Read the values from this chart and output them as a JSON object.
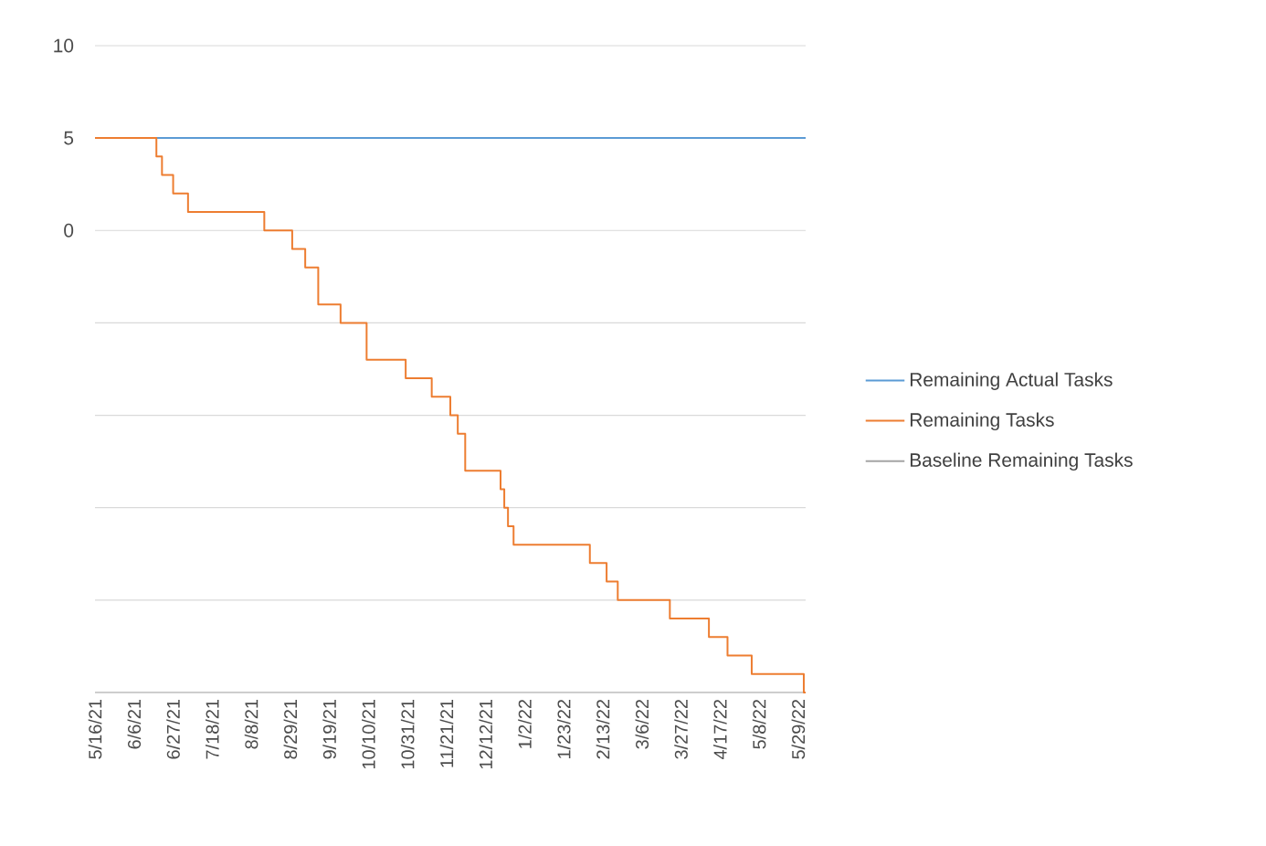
{
  "chart_data": {
    "type": "step",
    "xlim": [
      "2021-05-16",
      "2022-06-02"
    ],
    "ylim": [
      -25,
      10
    ],
    "xticks": [
      {
        "value": "2021-05-16",
        "label": "5/16/21"
      },
      {
        "value": "2021-06-06",
        "label": "6/6/21"
      },
      {
        "value": "2021-06-27",
        "label": "6/27/21"
      },
      {
        "value": "2021-07-18",
        "label": "7/18/21"
      },
      {
        "value": "2021-08-08",
        "label": "8/8/21"
      },
      {
        "value": "2021-08-29",
        "label": "8/29/21"
      },
      {
        "value": "2021-09-19",
        "label": "9/19/21"
      },
      {
        "value": "2021-10-10",
        "label": "10/10/21"
      },
      {
        "value": "2021-10-31",
        "label": "10/31/21"
      },
      {
        "value": "2021-11-21",
        "label": "11/21/21"
      },
      {
        "value": "2021-12-12",
        "label": "12/12/21"
      },
      {
        "value": "2022-01-02",
        "label": "1/2/22"
      },
      {
        "value": "2022-01-23",
        "label": "1/23/22"
      },
      {
        "value": "2022-02-13",
        "label": "2/13/22"
      },
      {
        "value": "2022-03-06",
        "label": "3/6/22"
      },
      {
        "value": "2022-03-27",
        "label": "3/27/22"
      },
      {
        "value": "2022-04-17",
        "label": "4/17/22"
      },
      {
        "value": "2022-05-08",
        "label": "5/8/22"
      },
      {
        "value": "2022-05-29",
        "label": "5/29/22"
      }
    ],
    "yticks": [
      10,
      5,
      0,
      {
        "value": -5,
        "label": null
      },
      {
        "value": -10,
        "label": null
      },
      {
        "value": -15,
        "label": null
      },
      {
        "value": -20,
        "label": null
      },
      {
        "value": -25,
        "label": null
      }
    ],
    "grid": "y",
    "legend": "right",
    "marker": "none",
    "line_style": "solid",
    "series": [
      {
        "name": "Remaining Actual Tasks",
        "color": "#5b9bd5",
        "type": "line",
        "x": [
          "2021-05-16",
          "2022-06-02"
        ],
        "values": [
          5,
          5
        ]
      },
      {
        "name": "Remaining Tasks",
        "color": "#ed7d31",
        "x": [
          "2021-05-16",
          "2021-06-18",
          "2021-06-21",
          "2021-06-27",
          "2021-07-05",
          "2021-08-15",
          "2021-08-30",
          "2021-09-06",
          "2021-09-13",
          "2021-09-25",
          "2021-10-09",
          "2021-10-30",
          "2021-11-13",
          "2021-11-23",
          "2021-11-27",
          "2021-12-01",
          "2021-12-20",
          "2021-12-22",
          "2021-12-24",
          "2021-12-27",
          "2022-02-06",
          "2022-02-15",
          "2022-02-21",
          "2022-03-21",
          "2022-04-11",
          "2022-04-21",
          "2022-05-04",
          "2022-06-01",
          "2022-06-02"
        ],
        "values": [
          5,
          4,
          3,
          2,
          1,
          0,
          -1,
          -2,
          -4,
          -5,
          -7,
          -8,
          -9,
          -10,
          -11,
          -13,
          -14,
          -15,
          -16,
          -17,
          -18,
          -19,
          -20,
          -21,
          -22,
          -23,
          -24,
          -25,
          -25
        ]
      },
      {
        "name": "Baseline Remaining Tasks",
        "color": "#a5a5a5",
        "type": "line",
        "values": [
          null
        ]
      }
    ]
  }
}
